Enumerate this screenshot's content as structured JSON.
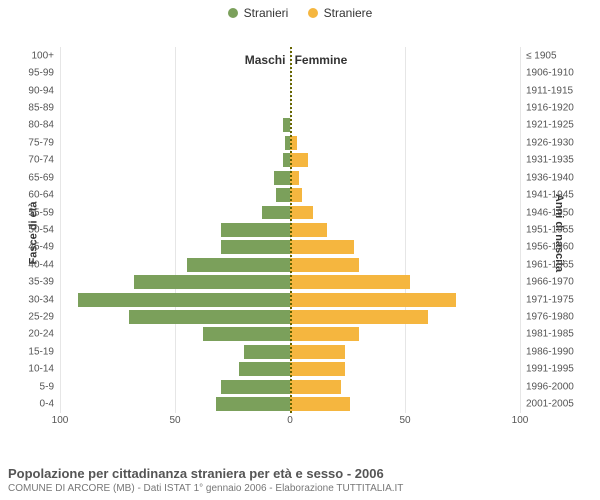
{
  "legend": {
    "male": {
      "label": "Stranieri",
      "color": "#7ba05b"
    },
    "female": {
      "label": "Straniere",
      "color": "#f5b63f"
    }
  },
  "chart": {
    "type": "population-pyramid",
    "male_title": "Maschi",
    "female_title": "Femmine",
    "y_axis_left_title": "Fasce di età",
    "y_axis_right_title": "Anni di nascita",
    "x_max": 100,
    "x_ticks": [
      100,
      50,
      0,
      50,
      100
    ],
    "grid_color": "#e6e6e6",
    "background_color": "#ffffff",
    "center_line_color": "#666600",
    "bar_colors": {
      "male": "#7ba05b",
      "female": "#f5b63f"
    },
    "age_groups": [
      {
        "age": "100+",
        "birth": "≤ 1905",
        "m": 0,
        "f": 0
      },
      {
        "age": "95-99",
        "birth": "1906-1910",
        "m": 0,
        "f": 0
      },
      {
        "age": "90-94",
        "birth": "1911-1915",
        "m": 0,
        "f": 0
      },
      {
        "age": "85-89",
        "birth": "1916-1920",
        "m": 0,
        "f": 0
      },
      {
        "age": "80-84",
        "birth": "1921-1925",
        "m": 3,
        "f": 0
      },
      {
        "age": "75-79",
        "birth": "1926-1930",
        "m": 2,
        "f": 3
      },
      {
        "age": "70-74",
        "birth": "1931-1935",
        "m": 3,
        "f": 8
      },
      {
        "age": "65-69",
        "birth": "1936-1940",
        "m": 7,
        "f": 4
      },
      {
        "age": "60-64",
        "birth": "1941-1945",
        "m": 6,
        "f": 5
      },
      {
        "age": "55-59",
        "birth": "1946-1950",
        "m": 12,
        "f": 10
      },
      {
        "age": "50-54",
        "birth": "1951-1955",
        "m": 30,
        "f": 16
      },
      {
        "age": "45-49",
        "birth": "1956-1960",
        "m": 30,
        "f": 28
      },
      {
        "age": "40-44",
        "birth": "1961-1965",
        "m": 45,
        "f": 30
      },
      {
        "age": "35-39",
        "birth": "1966-1970",
        "m": 68,
        "f": 52
      },
      {
        "age": "30-34",
        "birth": "1971-1975",
        "m": 92,
        "f": 72
      },
      {
        "age": "25-29",
        "birth": "1976-1980",
        "m": 70,
        "f": 60
      },
      {
        "age": "20-24",
        "birth": "1981-1985",
        "m": 38,
        "f": 30
      },
      {
        "age": "15-19",
        "birth": "1986-1990",
        "m": 20,
        "f": 24
      },
      {
        "age": "10-14",
        "birth": "1991-1995",
        "m": 22,
        "f": 24
      },
      {
        "age": "5-9",
        "birth": "1996-2000",
        "m": 30,
        "f": 22
      },
      {
        "age": "0-4",
        "birth": "2001-2005",
        "m": 32,
        "f": 26
      }
    ]
  },
  "footer": {
    "title": "Popolazione per cittadinanza straniera per età e sesso - 2006",
    "subtitle": "COMUNE DI ARCORE (MB) - Dati ISTAT 1° gennaio 2006 - Elaborazione TUTTITALIA.IT"
  }
}
